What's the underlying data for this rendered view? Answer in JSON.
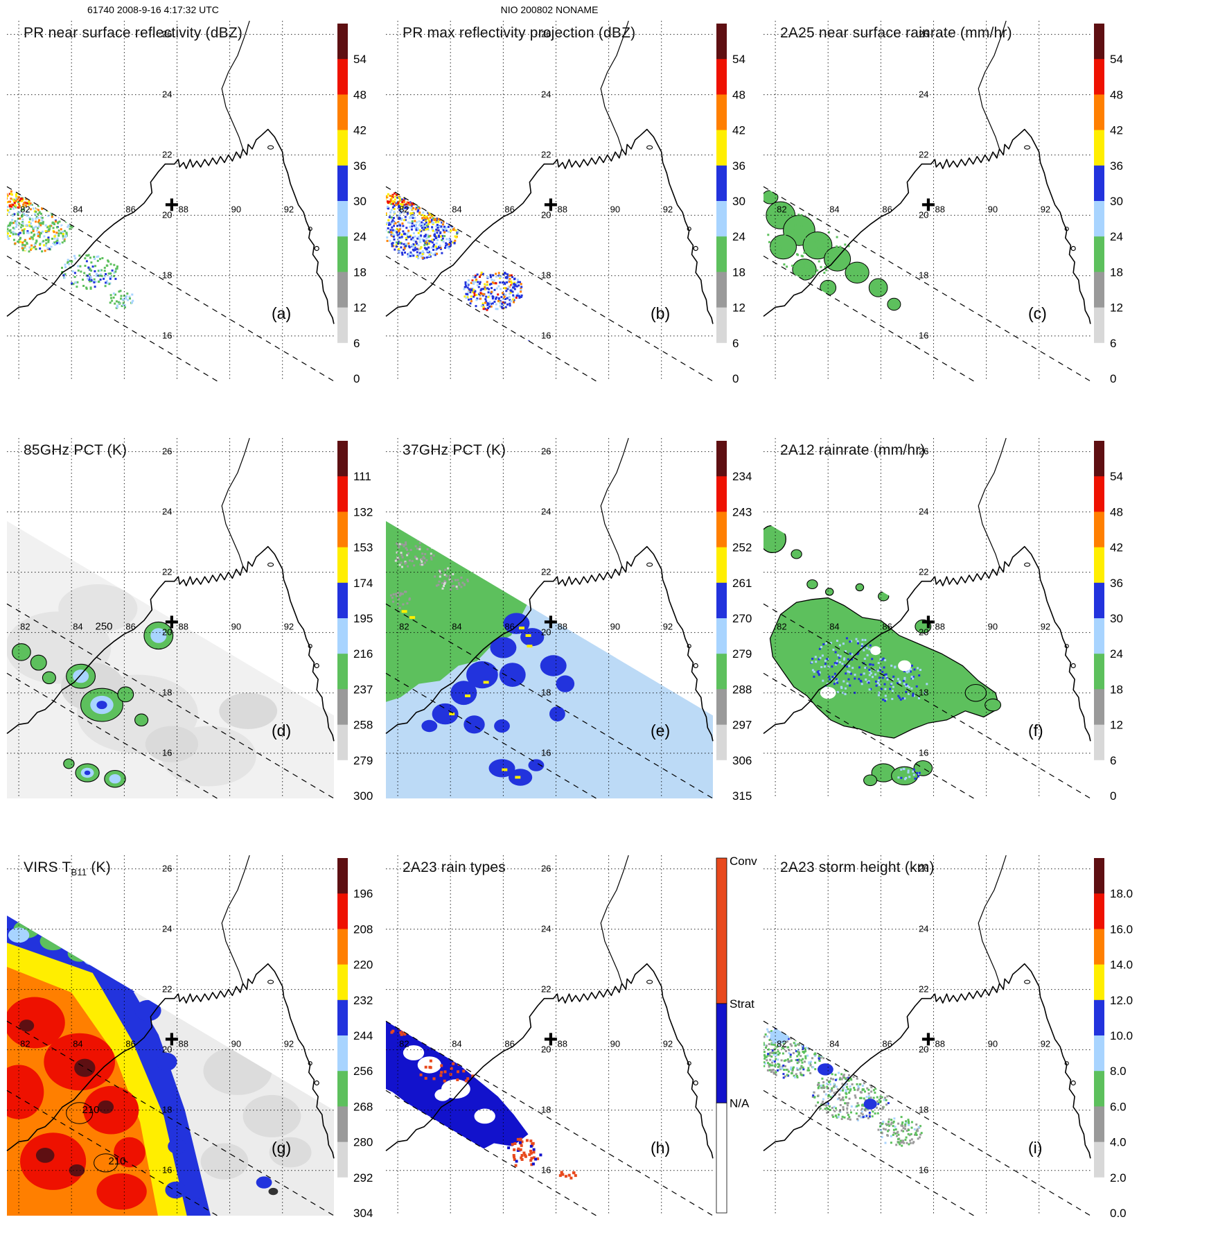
{
  "header": {
    "left": "61740 2008-9-16 4:17:32 UTC",
    "center": "NIO 200802 NONAME"
  },
  "axes": {
    "lon_ticks": [
      "82",
      "84",
      "86",
      "88",
      "90",
      "92"
    ],
    "lat_ticks": [
      "26",
      "24",
      "22",
      "20",
      "18",
      "16"
    ]
  },
  "storm_marker": {
    "symbol": "+",
    "lon": 87.8,
    "lat": 20.35
  },
  "chart_data": [
    {
      "type": "heatmap",
      "panel": "(a)",
      "title": "PR near surface reflectivity (dBZ)",
      "units": "dBZ",
      "swath": "PR narrow swath, lower-left diagonal band of scattered green/blue echoes with orange cells at the western edge and a small convective cluster near 86E,15.5N",
      "colorbar": {
        "ticks": [
          "54",
          "48",
          "42",
          "36",
          "30",
          "24",
          "18",
          "12",
          "6",
          "0"
        ]
      },
      "annotations": []
    },
    {
      "type": "heatmap",
      "panel": "(b)",
      "title": "PR max reflectivity projection (dBZ)",
      "units": "dBZ",
      "swath": "PR narrow swath, dense blue echo mass with yellow/orange maxima along the swath edge and a strong cell cluster near 86.5E,15.5N",
      "colorbar": {
        "ticks": [
          "54",
          "48",
          "42",
          "36",
          "30",
          "24",
          "18",
          "12",
          "6",
          "0"
        ]
      },
      "annotations": []
    },
    {
      "type": "heatmap",
      "panel": "(c)",
      "title": "2A25 near surface rainrate (mm/hr)",
      "units": "mm/hr",
      "swath": "PR narrow swath, mostly light (green) rain areas outlined in black with embedded blue higher rates near 86E,15.5N",
      "colorbar": {
        "ticks": [
          "54",
          "48",
          "42",
          "36",
          "30",
          "24",
          "18",
          "12",
          "6",
          "0"
        ]
      },
      "annotations": []
    },
    {
      "type": "heatmap",
      "panel": "(d)",
      "title": "85GHz PCT (K)",
      "units": "K",
      "swath": "TMI wide swath, warm (light gray) background with small cold green/blue ice-scattering cells outlined in black",
      "colorbar": {
        "ticks": [
          "111",
          "132",
          "153",
          "174",
          "195",
          "216",
          "237",
          "258",
          "279",
          "300"
        ]
      },
      "annotations": [
        {
          "text": "250",
          "lon": 84.9,
          "lat": 20.1
        }
      ]
    },
    {
      "type": "heatmap",
      "panel": "(e)",
      "title": "37GHz PCT (K)",
      "units": "K",
      "swath": "TMI wide swath, green cold sector northwest, pale blue background, dark blue depressed PCT band with yellow minima",
      "colorbar": {
        "ticks": [
          "234",
          "243",
          "252",
          "261",
          "270",
          "279",
          "288",
          "297",
          "306",
          "315"
        ]
      },
      "annotations": []
    },
    {
      "type": "heatmap",
      "panel": "(f)",
      "title": "2A12 rainrate (mm/hr)",
      "units": "mm/hr",
      "swath": "TMI wide swath, broad light (green) rain shield outlined in black with embedded light-blue/blue rates, small cells south near 86-88E,15.3N",
      "colorbar": {
        "ticks": [
          "54",
          "48",
          "42",
          "36",
          "30",
          "24",
          "18",
          "12",
          "6",
          "0"
        ]
      },
      "annotations": []
    },
    {
      "type": "heatmap",
      "panel": "(g)",
      "title": "VIRS T",
      "title_sub": "B11",
      "title_suffix": " (K)",
      "units": "K",
      "swath": "VIRS wide swath, large cold cloud shield (red/orange/yellow cores with blue fringe) over the west, warm gray scene to the east",
      "colorbar": {
        "ticks": [
          "196",
          "208",
          "220",
          "232",
          "244",
          "256",
          "268",
          "280",
          "292",
          "304"
        ]
      },
      "annotations": [
        {
          "text": "210",
          "lon": 84.4,
          "lat": 17.9
        },
        {
          "text": "210",
          "lon": 85.4,
          "lat": 16.2
        }
      ]
    },
    {
      "type": "heatmap",
      "panel": "(h)",
      "title": "2A23 rain types",
      "units": "",
      "swath": "PR narrow swath, mostly stratiform (blue) rain with scattered convective (red) pixels along edges and in the southern cluster",
      "colorbar": {
        "labels": [
          "Conv",
          "Strat",
          "N/A"
        ]
      },
      "annotations": []
    },
    {
      "type": "heatmap",
      "panel": "(i)",
      "title": "2A23 storm height (km)",
      "units": "km",
      "swath": "PR narrow swath, speckled 4-8 km storm heights (green/gray) with isolated 8-12 km (blue) patches",
      "colorbar": {
        "ticks": [
          "18.0",
          "16.0",
          "14.0",
          "12.0",
          "10.0",
          "8.0",
          "6.0",
          "4.0",
          "2.0",
          "0.0"
        ]
      },
      "annotations": []
    }
  ],
  "palette": {
    "scale_colors_top_to_bottom": [
      "#5e0f12",
      "#ee1100",
      "#ff7f00",
      "#ffee00",
      "#2233dd",
      "#a8d4ff",
      "#5dc05d",
      "#9a9a9a",
      "#d8d8d8",
      "#ffffff"
    ],
    "rain_type_colors": {
      "Conv": "#e8491d",
      "Strat": "#1212cc",
      "N/A": "#ffffff"
    }
  }
}
